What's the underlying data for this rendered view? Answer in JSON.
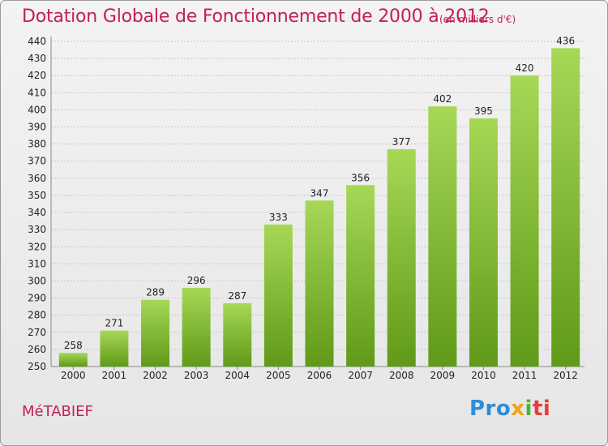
{
  "title": "Dotation Globale de Fonctionnement de 2000 à 2012",
  "unit": "(en milliers d'€)",
  "commune": "MéTABIEF",
  "logo": {
    "p1": "Pro",
    "p2": "x",
    "p3": "i",
    "p4": "ti"
  },
  "colors": {
    "title": "#c41d5e",
    "bar_light": "#a6d856",
    "bar_dark": "#5f9a18"
  },
  "chart_data": {
    "type": "bar",
    "title": "Dotation Globale de Fonctionnement de 2000 à 2012",
    "xlabel": "",
    "ylabel": "",
    "ylim": [
      250,
      440
    ],
    "yticks": [
      250,
      260,
      270,
      280,
      290,
      300,
      310,
      320,
      330,
      340,
      350,
      360,
      370,
      380,
      390,
      400,
      410,
      420,
      430,
      440
    ],
    "categories": [
      "2000",
      "2001",
      "2002",
      "2003",
      "2004",
      "2005",
      "2006",
      "2007",
      "2008",
      "2009",
      "2010",
      "2011",
      "2012"
    ],
    "values": [
      258,
      271,
      289,
      296,
      287,
      333,
      347,
      356,
      377,
      402,
      395,
      420,
      436
    ],
    "grid": true,
    "data_labels": true
  }
}
